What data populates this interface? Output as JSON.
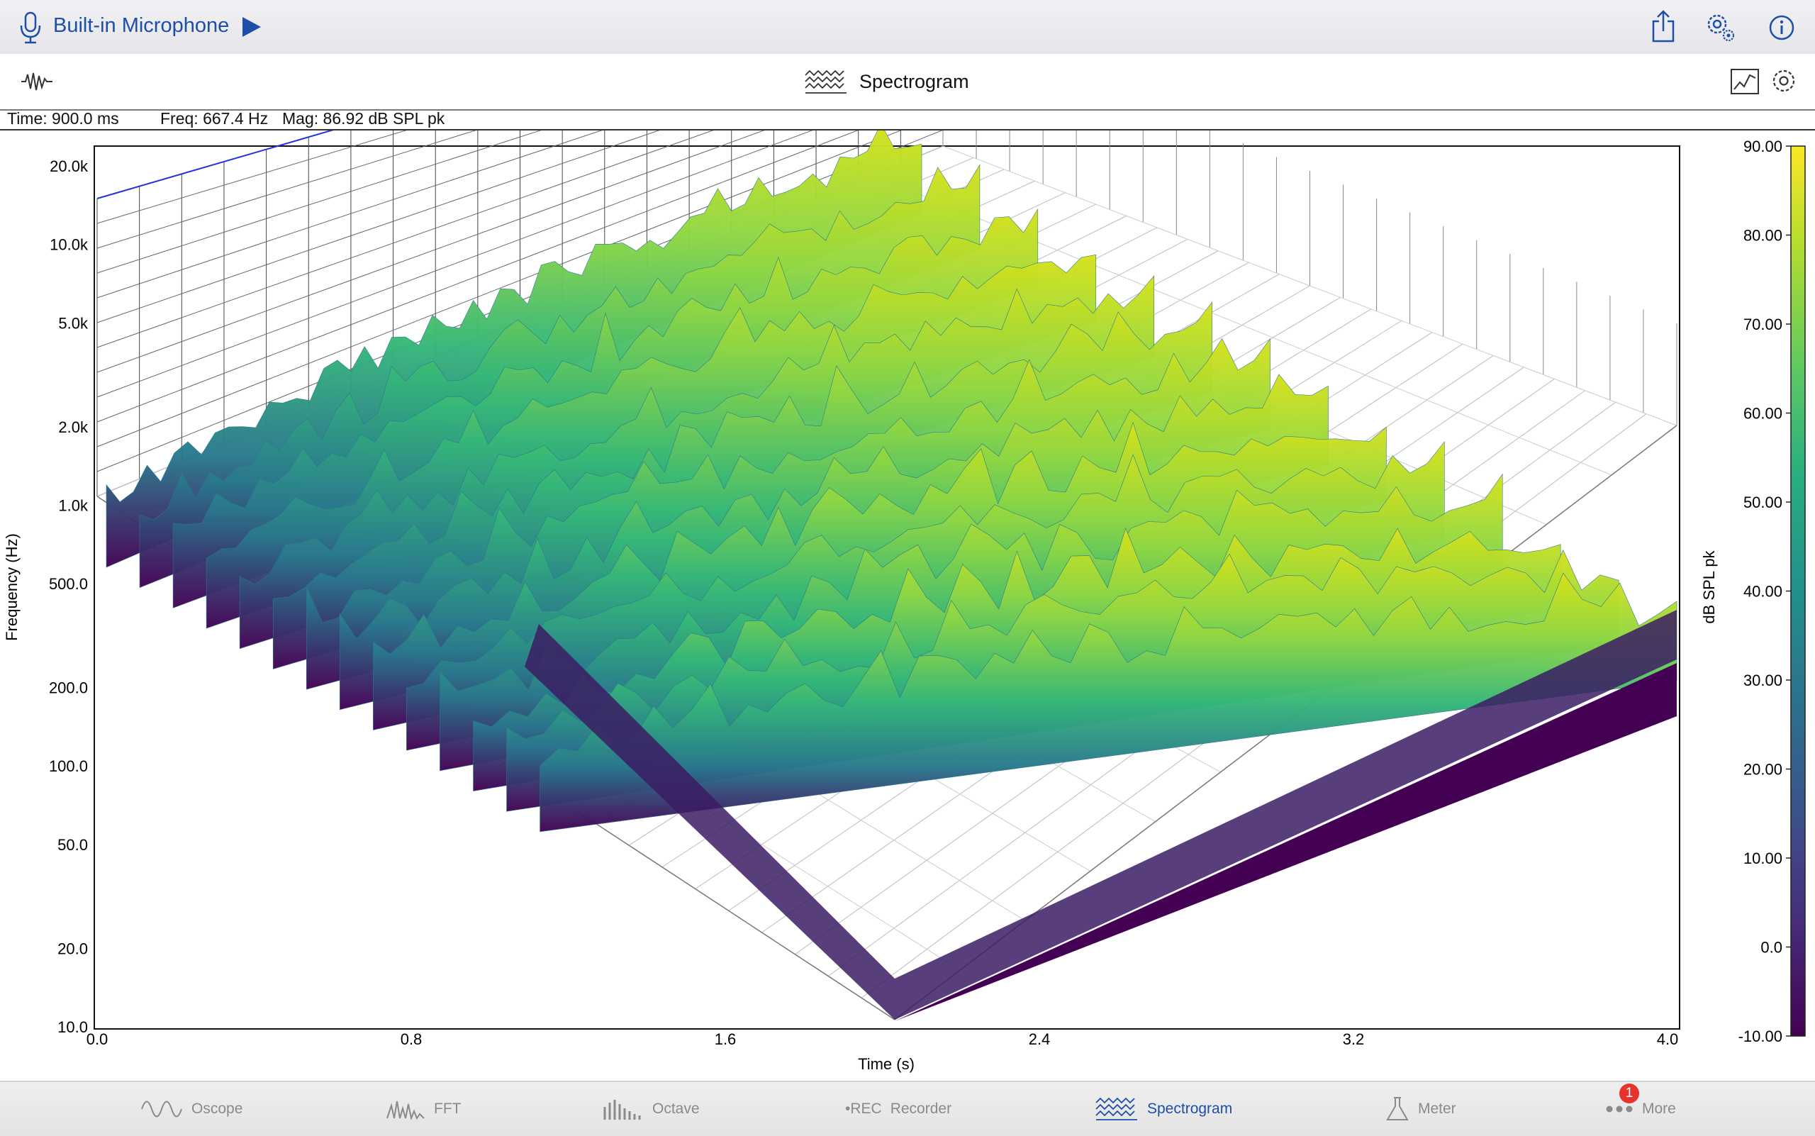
{
  "topbar": {
    "device_name": "Built-in Microphone",
    "icons": [
      "microphone-icon",
      "play-icon",
      "share-icon",
      "settings-gear-icon",
      "info-icon"
    ]
  },
  "view": {
    "title": "Spectrogram",
    "icons": [
      "waveform-icon",
      "spectrogram-icon",
      "chart-toggle-icon",
      "view-settings-icon"
    ]
  },
  "readout": {
    "time": "Time: 900.0 ms",
    "freq": "Freq: 667.4 Hz",
    "mag": "Mag: 86.92 dB SPL pk"
  },
  "chart_data": {
    "type": "3d-surface",
    "colormap": "viridis",
    "xlabel": "Time (s)",
    "ylabel": "Frequency (Hz)",
    "zlabel": "dB SPL pk",
    "x_ticks": [
      "0.0",
      "0.8",
      "1.6",
      "2.4",
      "3.2",
      "4.0"
    ],
    "y_ticks": [
      "20.0k",
      "10.0k",
      "5.0k",
      "2.0k",
      "1.0k",
      "500.0",
      "200.0",
      "100.0",
      "50.0",
      "20.0",
      "10.0"
    ],
    "colorbar_ticks": [
      "90.00",
      "80.00",
      "70.00",
      "60.00",
      "50.00",
      "40.00",
      "30.00",
      "20.00",
      "10.00",
      "0.0",
      "-10.00"
    ],
    "xlim": [
      0,
      4.0
    ],
    "ylim": [
      10,
      20000
    ],
    "zlim": [
      -10,
      90
    ]
  },
  "tabs": [
    {
      "label": "Oscope",
      "icon": "oscope-icon",
      "active": false
    },
    {
      "label": "FFT",
      "icon": "fft-icon",
      "active": false
    },
    {
      "label": "Octave",
      "icon": "octave-icon",
      "active": false
    },
    {
      "label": "Recorder",
      "icon": "rec-icon",
      "icon_text": "•REC",
      "active": false
    },
    {
      "label": "Spectrogram",
      "icon": "spectrogram-tab-icon",
      "active": true
    },
    {
      "label": "Meter",
      "icon": "meter-icon",
      "active": false
    },
    {
      "label": "More",
      "icon": "more-icon",
      "active": false
    }
  ],
  "more_badge": "1"
}
